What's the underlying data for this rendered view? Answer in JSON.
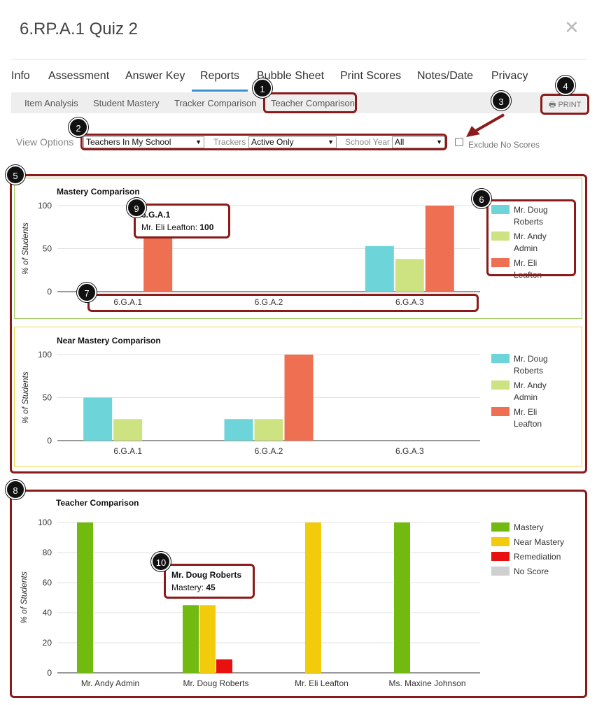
{
  "header": {
    "title": "6.RP.A.1 Quiz 2"
  },
  "tabs": [
    "Info",
    "Assessment",
    "Answer Key",
    "Reports",
    "Bubble Sheet",
    "Print Scores",
    "Notes/Date",
    "Privacy"
  ],
  "subtabs": [
    "Item Analysis",
    "Student Mastery",
    "Tracker Comparison",
    "Teacher Comparison"
  ],
  "print_label": "PRINT",
  "view_options": {
    "label": "View Options",
    "teachers_value": "Teachers In My School",
    "trackers_label": "Trackers",
    "trackers_value": "Active Only",
    "school_year_label": "School Year",
    "school_year_value": "All",
    "exclude_label": "Exclude No Scores"
  },
  "badges": [
    "1",
    "2",
    "3",
    "4",
    "5",
    "6",
    "7",
    "8",
    "9",
    "10"
  ],
  "tooltips": {
    "mastery": {
      "title": "6.G.A.1",
      "label": "Mr. Eli Leafton: ",
      "value": "100"
    },
    "teacher": {
      "title": "Mr. Doug Roberts",
      "label": "Mastery: ",
      "value": "45"
    }
  },
  "colors": {
    "doug": "#6dd5da",
    "andy": "#cde281",
    "eli": "#ee6f52",
    "mastery": "#72b910",
    "near": "#f2cc0c",
    "remediation": "#e8110f",
    "noscore": "#cfcfcf"
  },
  "chart_data": [
    {
      "type": "bar",
      "title": "Mastery Comparison",
      "ylabel": "% of Students",
      "ylim": [
        0,
        100
      ],
      "yticks": [
        0,
        50,
        100
      ],
      "categories": [
        "6.G.A.1",
        "6.G.A.2",
        "6.G.A.3"
      ],
      "series": [
        {
          "name": "Mr. Doug Roberts",
          "color": "#6dd5da",
          "values": [
            0,
            0,
            53
          ]
        },
        {
          "name": "Mr. Andy Admin",
          "color": "#cde281",
          "values": [
            0,
            0,
            38
          ]
        },
        {
          "name": "Mr. Eli Leafton",
          "color": "#ee6f52",
          "values": [
            100,
            0,
            100
          ]
        }
      ]
    },
    {
      "type": "bar",
      "title": "Near Mastery Comparison",
      "ylabel": "% of Students",
      "ylim": [
        0,
        100
      ],
      "yticks": [
        0,
        50,
        100
      ],
      "categories": [
        "6.G.A.1",
        "6.G.A.2",
        "6.G.A.3"
      ],
      "series": [
        {
          "name": "Mr. Doug Roberts",
          "color": "#6dd5da",
          "values": [
            50,
            25,
            0
          ]
        },
        {
          "name": "Mr. Andy Admin",
          "color": "#cde281",
          "values": [
            25,
            25,
            0
          ]
        },
        {
          "name": "Mr. Eli Leafton",
          "color": "#ee6f52",
          "values": [
            0,
            100,
            0
          ]
        }
      ]
    },
    {
      "type": "bar",
      "title": "Teacher Comparison",
      "ylabel": "% of Students",
      "ylim": [
        0,
        100
      ],
      "yticks": [
        0,
        20,
        40,
        60,
        80,
        100
      ],
      "categories": [
        "Mr. Andy Admin",
        "Mr. Doug Roberts",
        "Mr. Eli Leafton",
        "Ms. Maxine Johnson"
      ],
      "series": [
        {
          "name": "Mastery",
          "color": "#72b910",
          "values": [
            100,
            45,
            0,
            100
          ]
        },
        {
          "name": "Near Mastery",
          "color": "#f2cc0c",
          "values": [
            0,
            45,
            100,
            0
          ]
        },
        {
          "name": "Remediation",
          "color": "#e8110f",
          "values": [
            0,
            9,
            0,
            0
          ]
        },
        {
          "name": "No Score",
          "color": "#cfcfcf",
          "values": [
            0,
            0,
            0,
            0
          ]
        }
      ]
    }
  ]
}
